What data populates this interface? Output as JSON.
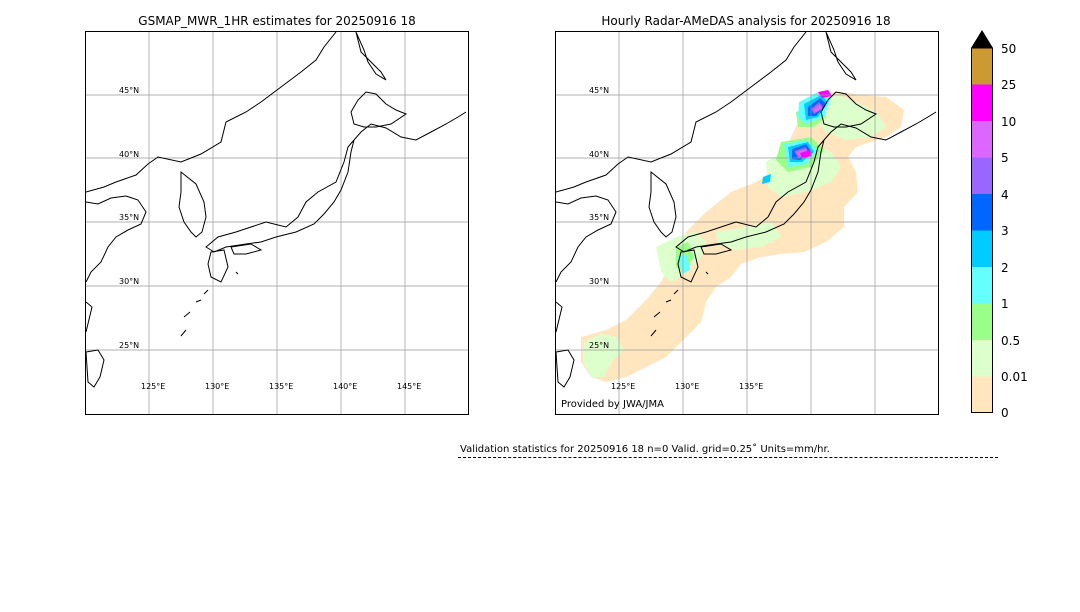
{
  "left_panel": {
    "title": "GSMAP_MWR_1HR estimates for 20250916 18",
    "lat_labels": [
      "45°N",
      "40°N",
      "35°N",
      "30°N",
      "25°N"
    ],
    "lon_labels": [
      "125°E",
      "130°E",
      "135°E",
      "140°E",
      "145°E"
    ]
  },
  "right_panel": {
    "title": "Hourly Radar-AMeDAS analysis for 20250916 18",
    "lat_labels": [
      "45°N",
      "40°N",
      "35°N",
      "30°N",
      "25°N"
    ],
    "lon_labels": [
      "125°E",
      "130°E",
      "135°E"
    ],
    "credit": "Provided by JWA/JMA"
  },
  "colorbar": {
    "labels": [
      "50",
      "25",
      "10",
      "5",
      "4",
      "3",
      "2",
      "1",
      "0.5",
      "0.01",
      "0"
    ],
    "colors": [
      "#cc9933",
      "#ff00ff",
      "#dd66ff",
      "#9966ff",
      "#0066ff",
      "#00ccff",
      "#66ffff",
      "#99ff88",
      "#ddffcc",
      "#ffe6bf"
    ],
    "extend_color": "#000000"
  },
  "stats_text": "Validation statistics for 20250916 18  n=0 Valid. grid=0.25˚ Units=mm/hr."
}
